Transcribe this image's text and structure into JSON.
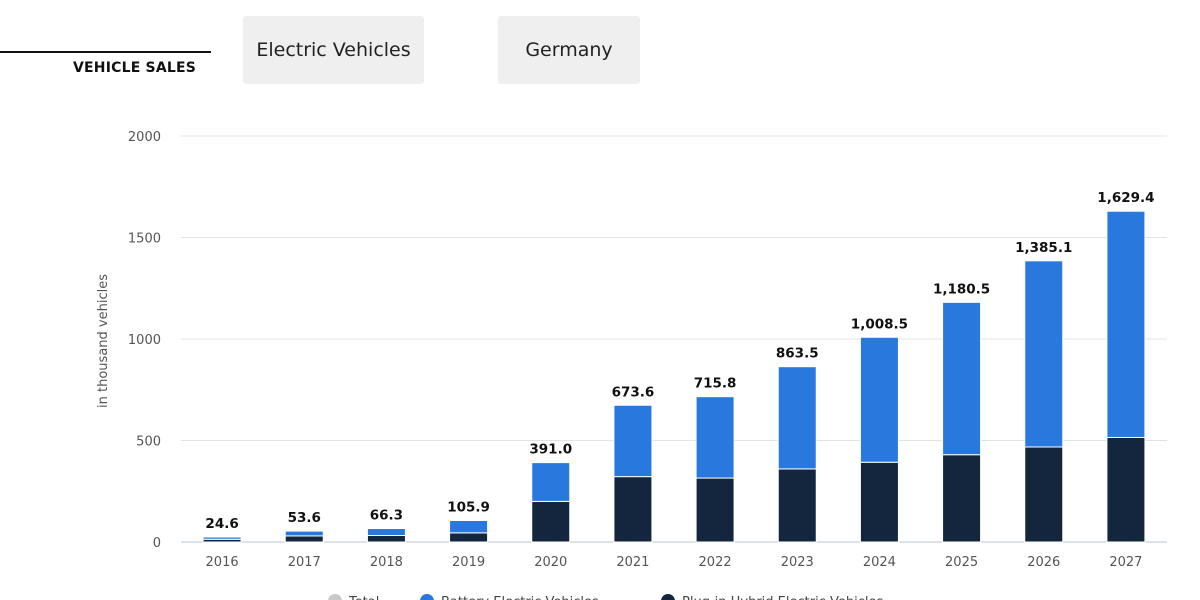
{
  "header": {
    "section_title": "VEHICLE SALES",
    "category_filter": "Electric Vehicles",
    "region_filter": "Germany"
  },
  "colors": {
    "bev": "#2878dd",
    "phev": "#13263d",
    "total": "#c8c8c8",
    "grid": "#e3e3e3"
  },
  "chart_data": {
    "type": "bar",
    "stacked": true,
    "title": "",
    "xlabel": "",
    "ylabel": "in thousand vehicles",
    "ylim": [
      0,
      2000
    ],
    "yticks": [
      0,
      500,
      1000,
      1500,
      2000
    ],
    "categories": [
      "2016",
      "2017",
      "2018",
      "2019",
      "2020",
      "2021",
      "2022",
      "2023",
      "2024",
      "2025",
      "2026",
      "2027"
    ],
    "series": [
      {
        "name": "Plug-in Hybrid Electric Vehicles",
        "values": [
          13.5,
          30.0,
          32.0,
          45.0,
          200.0,
          322.0,
          315.0,
          360.0,
          393.0,
          430.0,
          468.0,
          515.0
        ]
      },
      {
        "name": "Battery Electric Vehicles",
        "values": [
          11.1,
          23.6,
          34.3,
          60.9,
          191.0,
          351.6,
          400.8,
          503.5,
          615.5,
          750.5,
          917.1,
          1114.4
        ]
      }
    ],
    "totals": [
      "24.6",
      "53.6",
      "66.3",
      "105.9",
      "391.0",
      "673.6",
      "715.8",
      "863.5",
      "1,008.5",
      "1,180.5",
      "1,385.1",
      "1,629.4"
    ],
    "legend": [
      "Total",
      "Battery Electric Vehicles",
      "Plug-in Hybrid Electric Vehicles"
    ],
    "legend_position": "bottom",
    "grid": true
  }
}
